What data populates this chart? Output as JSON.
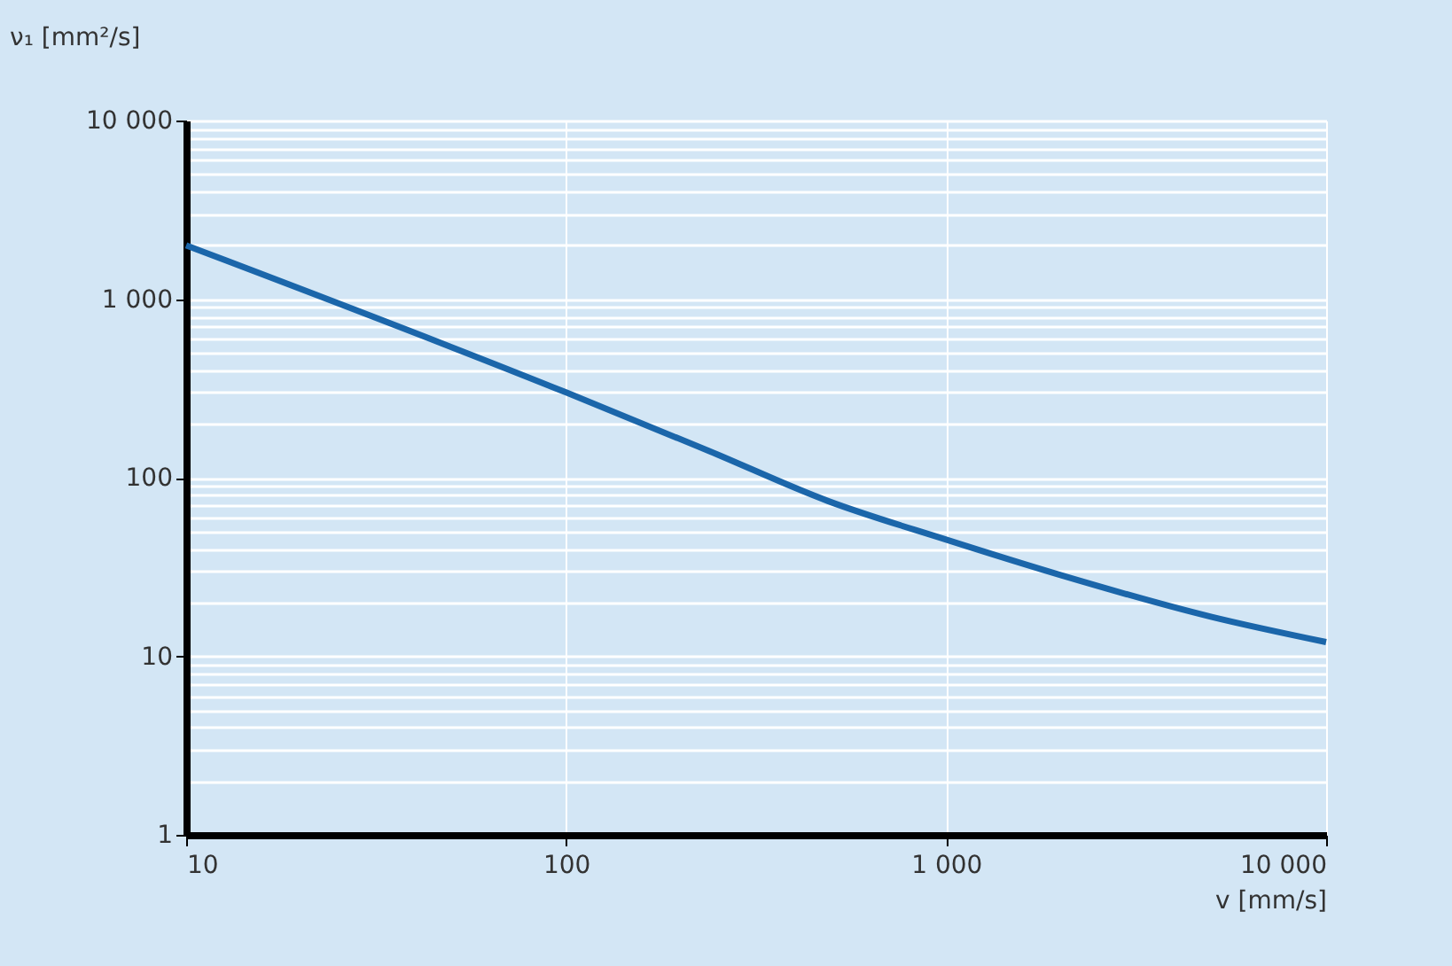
{
  "chart_data": {
    "type": "line",
    "xlabel": "v [mm/s]",
    "ylabel": "ν₁ [mm²/s]",
    "log": "xy",
    "grid": true,
    "x": [
      10,
      100,
      238,
      489,
      1000,
      2000,
      5000,
      10000
    ],
    "series": [
      {
        "color": "#1b66aa",
        "values": [
          2000,
          300,
          141,
          74,
          45,
          28.5,
          16.6,
          12
        ]
      }
    ],
    "xlim": [
      10,
      10000
    ],
    "ylim": [
      1,
      10000
    ],
    "xticks": [
      10,
      100,
      {
        "value": 1000,
        "label": "1 000"
      },
      {
        "value": 10000,
        "label": "10 000"
      }
    ],
    "yticks": [
      1,
      {
        "value": 2,
        "label": null
      },
      {
        "value": 3,
        "label": null
      },
      {
        "value": 4,
        "label": null
      },
      {
        "value": 5,
        "label": null
      },
      {
        "value": 6,
        "label": null
      },
      {
        "value": 7,
        "label": null
      },
      {
        "value": 8,
        "label": null
      },
      {
        "value": 9,
        "label": null
      },
      10,
      {
        "value": 20,
        "label": null
      },
      {
        "value": 30,
        "label": null
      },
      {
        "value": 40,
        "label": null
      },
      {
        "value": 50,
        "label": null
      },
      {
        "value": 60,
        "label": null
      },
      {
        "value": 70,
        "label": null
      },
      {
        "value": 80,
        "label": null
      },
      {
        "value": 90,
        "label": null
      },
      100,
      {
        "value": 200,
        "label": null
      },
      {
        "value": 300,
        "label": null
      },
      {
        "value": 400,
        "label": null
      },
      {
        "value": 500,
        "label": null
      },
      {
        "value": 600,
        "label": null
      },
      {
        "value": 700,
        "label": null
      },
      {
        "value": 800,
        "label": null
      },
      {
        "value": 900,
        "label": null
      },
      {
        "value": 1000,
        "label": "1 000"
      },
      {
        "value": 2000,
        "label": null
      },
      {
        "value": 3000,
        "label": null
      },
      {
        "value": 4000,
        "label": null
      },
      {
        "value": 5000,
        "label": null
      },
      {
        "value": 6000,
        "label": null
      },
      {
        "value": 7000,
        "label": null
      },
      {
        "value": 8000,
        "label": null
      },
      {
        "value": 9000,
        "label": null
      },
      {
        "value": 10000,
        "label": "10 000"
      }
    ]
  }
}
